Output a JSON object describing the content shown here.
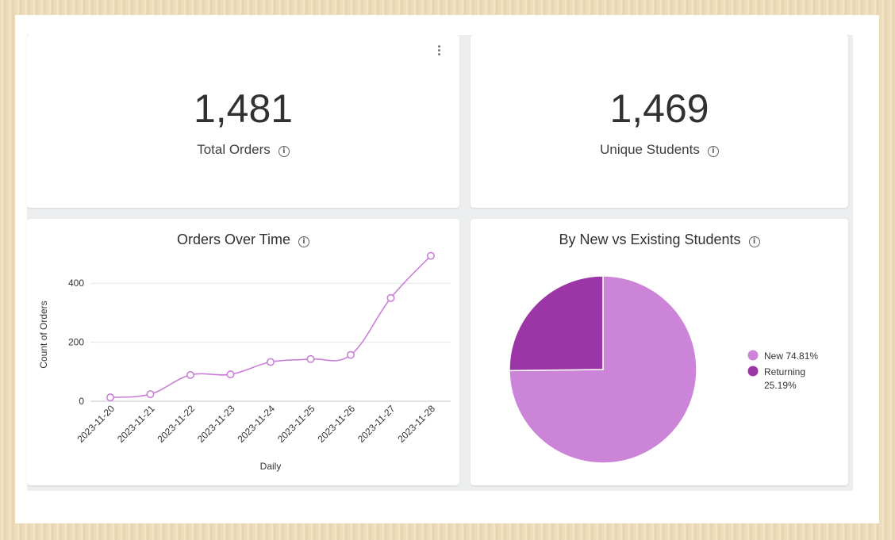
{
  "kpis": {
    "total_orders": {
      "value": "1,481",
      "label": "Total Orders"
    },
    "unique_students": {
      "value": "1,469",
      "label": "Unique Students"
    }
  },
  "info_icon": "info-icon",
  "menu_icon": "kebab-menu-icon",
  "orders_chart": {
    "title": "Orders Over Time",
    "ylabel": "Count of Orders",
    "xlabel": "Daily"
  },
  "pie_chart": {
    "title": "By New vs Existing Students"
  },
  "colors": {
    "line": "#c97fd6",
    "new": "#cc84d8",
    "returning": "#9c36a6"
  },
  "chart_data": [
    {
      "type": "line",
      "title": "Orders Over Time",
      "xlabel": "Daily",
      "ylabel": "Count of Orders",
      "categories": [
        "2023-11-20",
        "2023-11-21",
        "2023-11-22",
        "2023-11-23",
        "2023-11-24",
        "2023-11-25",
        "2023-11-26",
        "2023-11-27",
        "2023-11-28"
      ],
      "values": [
        13,
        24,
        89,
        91,
        133,
        143,
        157,
        350,
        493
      ],
      "yticks": [
        0,
        200,
        400
      ],
      "ylim": [
        0,
        500
      ],
      "grid": true
    },
    {
      "type": "pie",
      "title": "By New vs Existing Students",
      "slices": [
        {
          "label": "New",
          "value": 74.81,
          "display": "New 74.81%",
          "color": "#cc84d8"
        },
        {
          "label": "Returning",
          "value": 25.19,
          "display": "Returning 25.19%",
          "line1": "Returning",
          "line2": "25.19%",
          "color": "#9c36a6"
        }
      ],
      "legend": "right"
    }
  ]
}
